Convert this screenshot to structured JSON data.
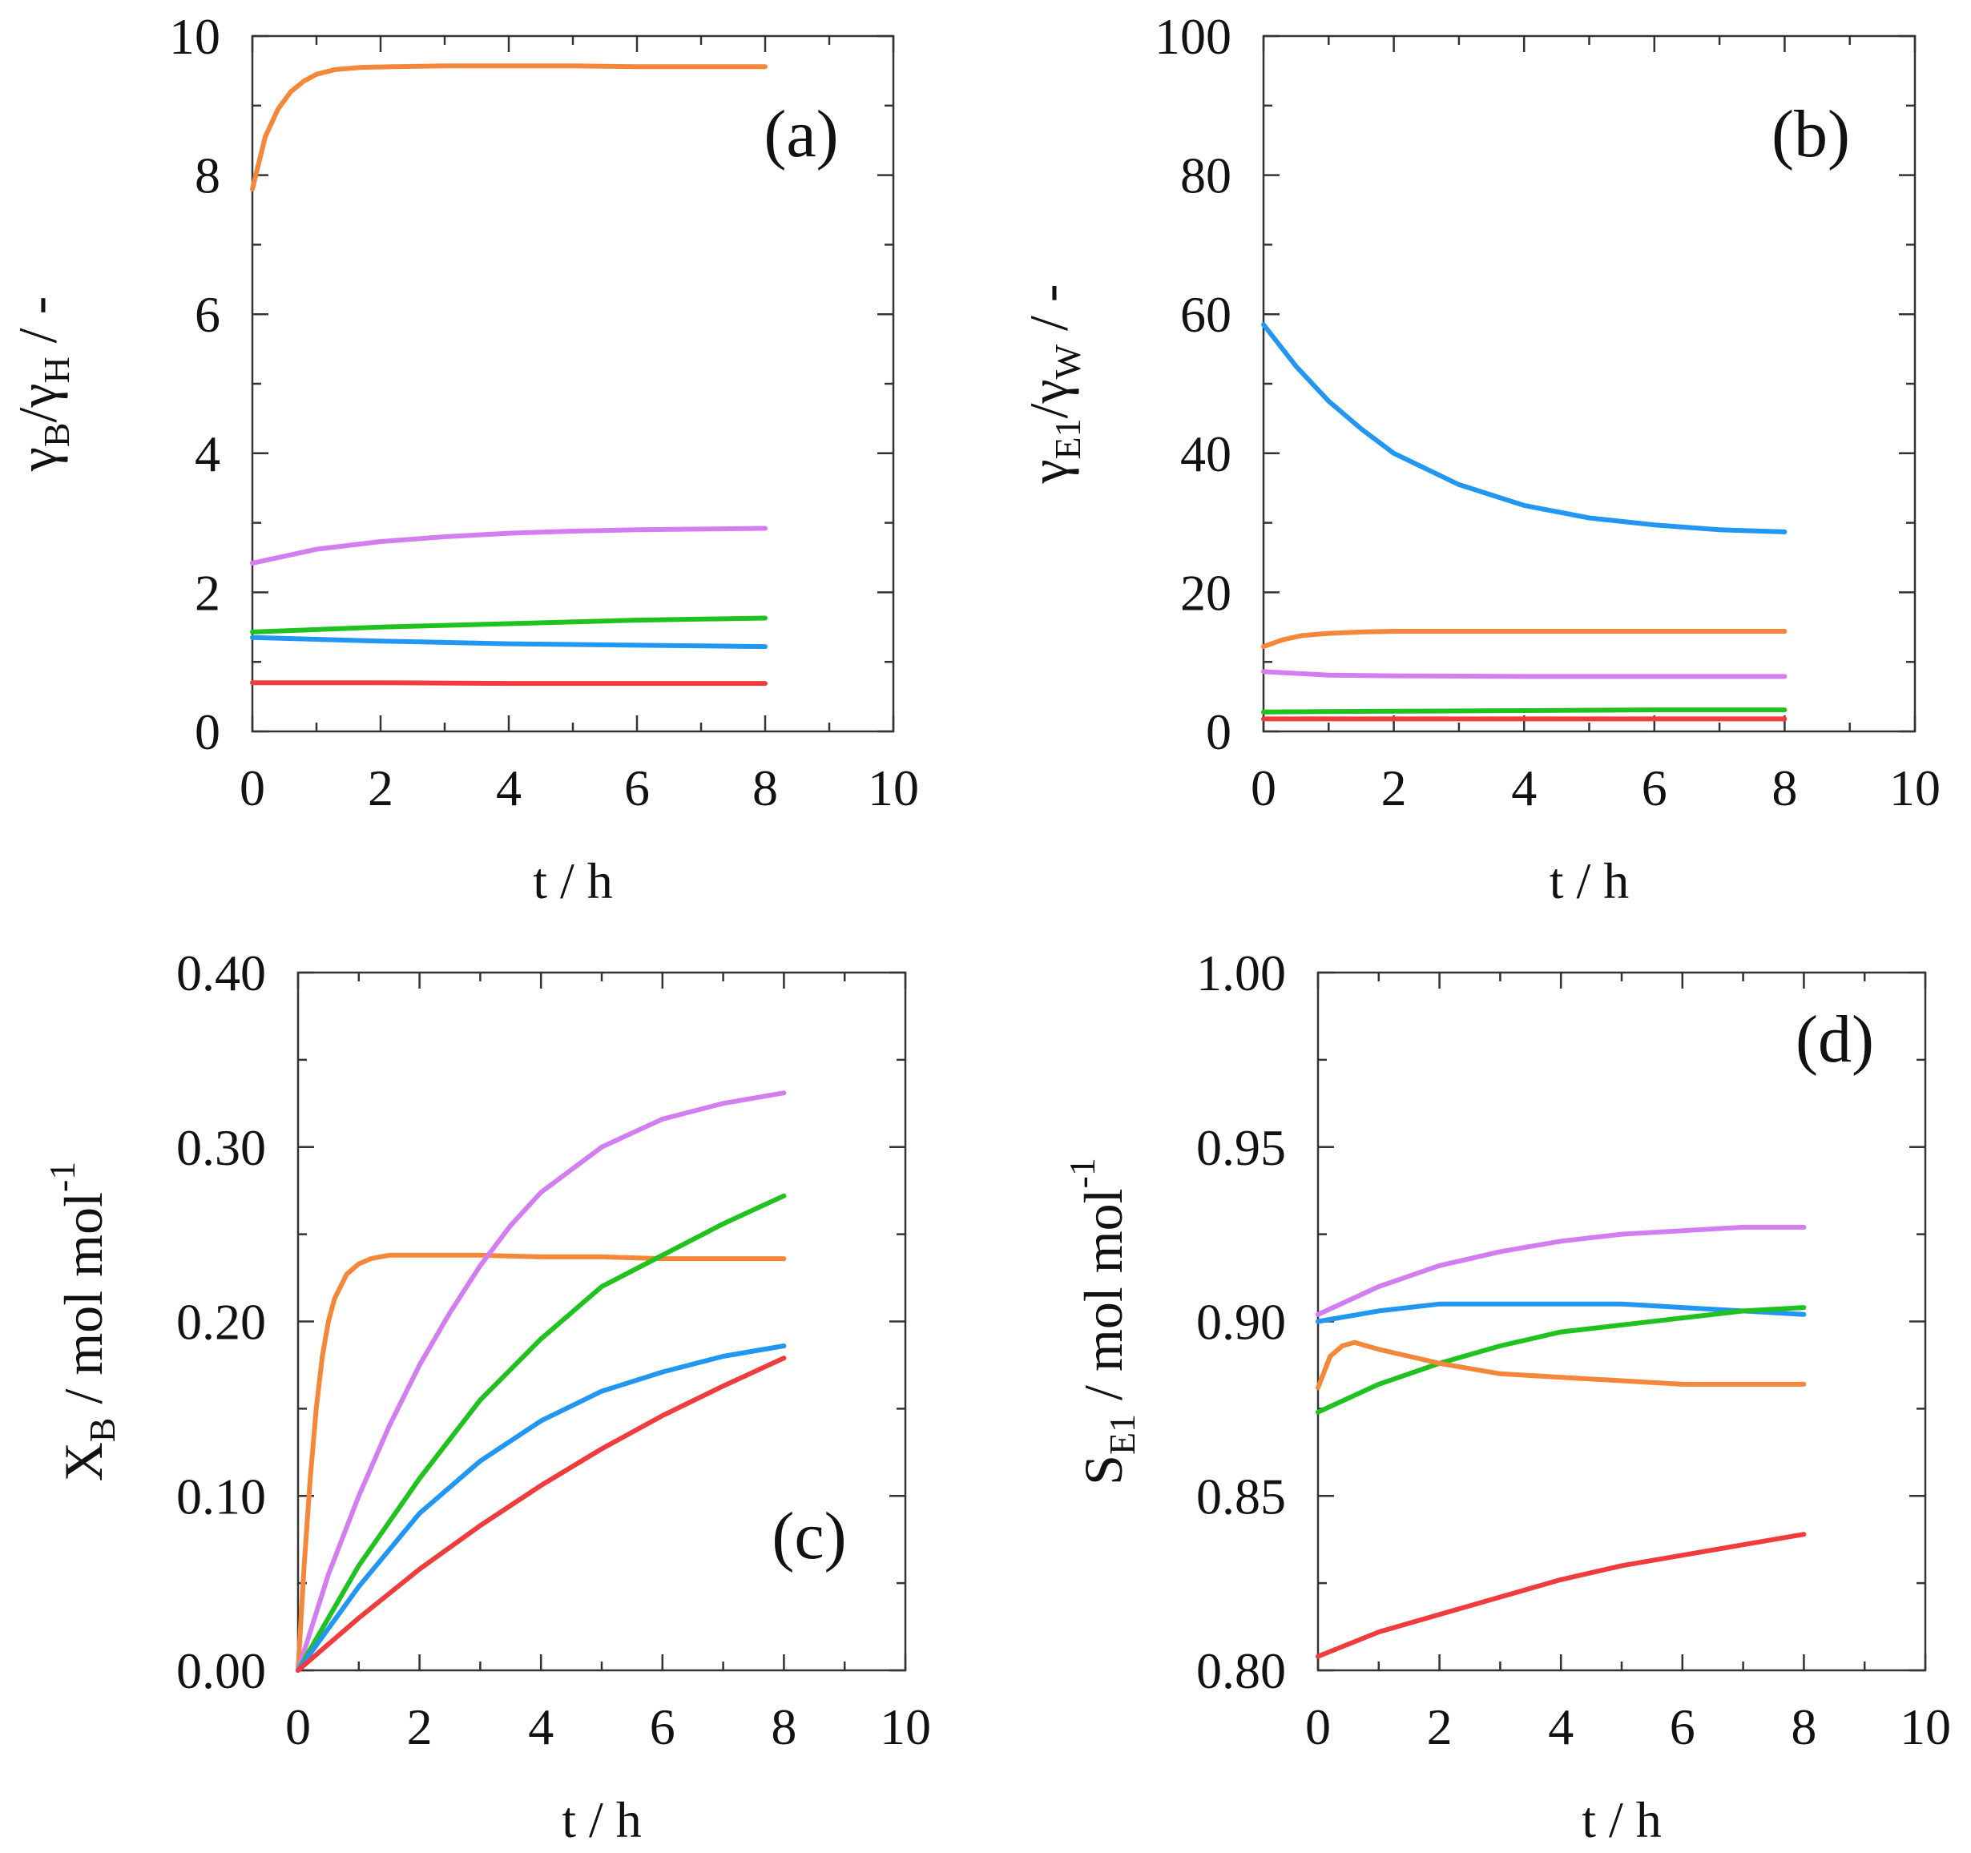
{
  "colors": {
    "orange": "#f5873a",
    "violet": "#d27ef0",
    "green": "#1fc21f",
    "blue": "#2196f3",
    "red": "#f03c3c"
  },
  "chart_data": [
    {
      "id": "a",
      "type": "line",
      "panel_label": "(a)",
      "xlabel": "t / h",
      "ylabel_parts": [
        {
          "t": "γ",
          "sub": false
        },
        {
          "t": "B",
          "sub": true
        },
        {
          "t": "/γ",
          "sub": false
        },
        {
          "t": "H",
          "sub": true
        },
        {
          "t": " / -",
          "sub": false
        }
      ],
      "xlim": [
        0,
        10
      ],
      "ylim": [
        0,
        10
      ],
      "xticks": [
        0,
        2,
        4,
        6,
        8,
        10
      ],
      "xtick_labels": [
        "0",
        "2",
        "4",
        "6",
        "8",
        "10"
      ],
      "yticks": [
        0,
        2,
        4,
        6,
        8,
        10
      ],
      "ytick_labels": [
        "0",
        "2",
        "4",
        "6",
        "8",
        "10"
      ],
      "series": [
        {
          "color": "orange",
          "x": [
            0,
            0.2,
            0.4,
            0.6,
            0.8,
            1,
            1.3,
            1.7,
            2.2,
            3,
            4,
            5,
            6,
            7,
            8
          ],
          "y": [
            7.8,
            8.55,
            8.95,
            9.2,
            9.35,
            9.45,
            9.52,
            9.55,
            9.56,
            9.57,
            9.57,
            9.57,
            9.56,
            9.56,
            9.56
          ]
        },
        {
          "color": "violet",
          "x": [
            0,
            1,
            2,
            3,
            4,
            5,
            6,
            7,
            8
          ],
          "y": [
            2.42,
            2.62,
            2.73,
            2.8,
            2.85,
            2.88,
            2.9,
            2.91,
            2.92
          ]
        },
        {
          "color": "green",
          "x": [
            0,
            2,
            4,
            6,
            8
          ],
          "y": [
            1.43,
            1.5,
            1.55,
            1.6,
            1.63
          ]
        },
        {
          "color": "blue",
          "x": [
            0,
            2,
            4,
            6,
            8
          ],
          "y": [
            1.35,
            1.3,
            1.26,
            1.24,
            1.22
          ]
        },
        {
          "color": "red",
          "x": [
            0,
            2,
            4,
            6,
            8
          ],
          "y": [
            0.7,
            0.7,
            0.69,
            0.69,
            0.69
          ]
        }
      ]
    },
    {
      "id": "b",
      "type": "line",
      "panel_label": "(b)",
      "xlabel": "t / h",
      "ylabel_parts": [
        {
          "t": "γ",
          "sub": false
        },
        {
          "t": "E1",
          "sub": true
        },
        {
          "t": "/γ",
          "sub": false
        },
        {
          "t": "W",
          "sub": true
        },
        {
          "t": " / -",
          "sub": false
        }
      ],
      "xlim": [
        0,
        10
      ],
      "ylim": [
        0,
        100
      ],
      "xticks": [
        0,
        2,
        4,
        6,
        8,
        10
      ],
      "xtick_labels": [
        "0",
        "2",
        "4",
        "6",
        "8",
        "10"
      ],
      "yticks": [
        0,
        20,
        40,
        60,
        80,
        100
      ],
      "ytick_labels": [
        "0",
        "20",
        "40",
        "60",
        "80",
        "100"
      ],
      "series": [
        {
          "color": "blue",
          "x": [
            0,
            0.5,
            1,
            1.5,
            2,
            3,
            4,
            5,
            6,
            7,
            8
          ],
          "y": [
            58.5,
            52.5,
            47.5,
            43.5,
            40,
            35.5,
            32.5,
            30.7,
            29.7,
            29,
            28.7
          ]
        },
        {
          "color": "orange",
          "x": [
            0,
            0.3,
            0.6,
            1,
            1.5,
            2,
            4,
            6,
            8
          ],
          "y": [
            12.2,
            13.2,
            13.8,
            14.1,
            14.3,
            14.4,
            14.4,
            14.4,
            14.4
          ]
        },
        {
          "color": "violet",
          "x": [
            0,
            1,
            2,
            4,
            6,
            8
          ],
          "y": [
            8.6,
            8.1,
            8,
            7.9,
            7.9,
            7.9
          ]
        },
        {
          "color": "green",
          "x": [
            0,
            2,
            4,
            6,
            8
          ],
          "y": [
            2.8,
            2.9,
            3,
            3.1,
            3.1
          ]
        },
        {
          "color": "red",
          "x": [
            0,
            2,
            4,
            6,
            8
          ],
          "y": [
            1.8,
            1.8,
            1.8,
            1.8,
            1.8
          ]
        }
      ]
    },
    {
      "id": "c",
      "type": "line",
      "panel_label": "(c)",
      "xlabel": "t / h",
      "ylabel_parts": [
        {
          "t": "X",
          "sub": false
        },
        {
          "t": "B",
          "sub": true
        },
        {
          "t": " / mol mol",
          "sub": false
        },
        {
          "t": "-1",
          "sup": true
        }
      ],
      "xlim": [
        0,
        10
      ],
      "ylim": [
        0,
        0.4
      ],
      "xticks": [
        0,
        2,
        4,
        6,
        8,
        10
      ],
      "xtick_labels": [
        "0",
        "2",
        "4",
        "6",
        "8",
        "10"
      ],
      "yticks": [
        0,
        0.1,
        0.2,
        0.3,
        0.4
      ],
      "ytick_labels": [
        "0.00",
        "0.10",
        "0.20",
        "0.30",
        "0.40"
      ],
      "series": [
        {
          "color": "orange",
          "x": [
            0,
            0.1,
            0.2,
            0.3,
            0.4,
            0.5,
            0.6,
            0.8,
            1,
            1.2,
            1.5,
            1.8,
            2,
            3,
            4,
            5,
            6,
            7,
            8
          ],
          "y": [
            0,
            0.06,
            0.11,
            0.15,
            0.18,
            0.2,
            0.213,
            0.227,
            0.233,
            0.236,
            0.238,
            0.238,
            0.238,
            0.238,
            0.237,
            0.237,
            0.236,
            0.236,
            0.236
          ]
        },
        {
          "color": "violet",
          "x": [
            0,
            0.5,
            1,
            1.5,
            2,
            2.5,
            3,
            3.5,
            4,
            5,
            6,
            7,
            8
          ],
          "y": [
            0,
            0.055,
            0.1,
            0.14,
            0.175,
            0.205,
            0.232,
            0.255,
            0.274,
            0.3,
            0.316,
            0.325,
            0.331
          ]
        },
        {
          "color": "green",
          "x": [
            0,
            1,
            2,
            3,
            4,
            5,
            6,
            7,
            8
          ],
          "y": [
            0,
            0.06,
            0.11,
            0.155,
            0.19,
            0.22,
            0.238,
            0.256,
            0.272
          ]
        },
        {
          "color": "blue",
          "x": [
            0,
            1,
            2,
            3,
            4,
            5,
            6,
            7,
            8
          ],
          "y": [
            0,
            0.048,
            0.09,
            0.12,
            0.143,
            0.16,
            0.171,
            0.18,
            0.186
          ]
        },
        {
          "color": "red",
          "x": [
            0,
            1,
            2,
            3,
            4,
            5,
            6,
            7,
            8
          ],
          "y": [
            0,
            0.03,
            0.058,
            0.083,
            0.106,
            0.127,
            0.146,
            0.163,
            0.179
          ]
        }
      ]
    },
    {
      "id": "d",
      "type": "line",
      "panel_label": "(d)",
      "xlabel": "t / h",
      "ylabel_parts": [
        {
          "t": "S",
          "sub": false
        },
        {
          "t": "E1",
          "sub": true
        },
        {
          "t": " / mol mol",
          "sub": false
        },
        {
          "t": "-1",
          "sup": true
        }
      ],
      "xlim": [
        0,
        10
      ],
      "ylim": [
        0.8,
        1.0
      ],
      "xticks": [
        0,
        2,
        4,
        6,
        8,
        10
      ],
      "xtick_labels": [
        "0",
        "2",
        "4",
        "6",
        "8",
        "10"
      ],
      "yticks": [
        0.8,
        0.85,
        0.9,
        0.95,
        1.0
      ],
      "ytick_labels": [
        "0.80",
        "0.85",
        "0.90",
        "0.95",
        "1.00"
      ],
      "series": [
        {
          "color": "violet",
          "x": [
            0,
            1,
            2,
            3,
            4,
            5,
            6,
            7,
            8
          ],
          "y": [
            0.902,
            0.91,
            0.916,
            0.92,
            0.923,
            0.925,
            0.926,
            0.927,
            0.927
          ]
        },
        {
          "color": "blue",
          "x": [
            0,
            1,
            2,
            3,
            4,
            5,
            6,
            7,
            8
          ],
          "y": [
            0.9,
            0.903,
            0.905,
            0.905,
            0.905,
            0.905,
            0.904,
            0.903,
            0.902
          ]
        },
        {
          "color": "green",
          "x": [
            0,
            1,
            2,
            3,
            4,
            5,
            6,
            7,
            8
          ],
          "y": [
            0.874,
            0.882,
            0.888,
            0.893,
            0.897,
            0.899,
            0.901,
            0.903,
            0.904
          ]
        },
        {
          "color": "orange",
          "x": [
            0,
            0.2,
            0.4,
            0.6,
            0.8,
            1,
            1.5,
            2,
            3,
            4,
            5,
            6,
            7,
            8
          ],
          "y": [
            0.881,
            0.89,
            0.893,
            0.894,
            0.893,
            0.892,
            0.89,
            0.888,
            0.885,
            0.884,
            0.883,
            0.882,
            0.882,
            0.882
          ]
        },
        {
          "color": "red",
          "x": [
            0,
            1,
            2,
            3,
            4,
            5,
            6,
            7,
            8
          ],
          "y": [
            0.804,
            0.811,
            0.816,
            0.821,
            0.826,
            0.83,
            0.833,
            0.836,
            0.839
          ]
        }
      ]
    }
  ]
}
